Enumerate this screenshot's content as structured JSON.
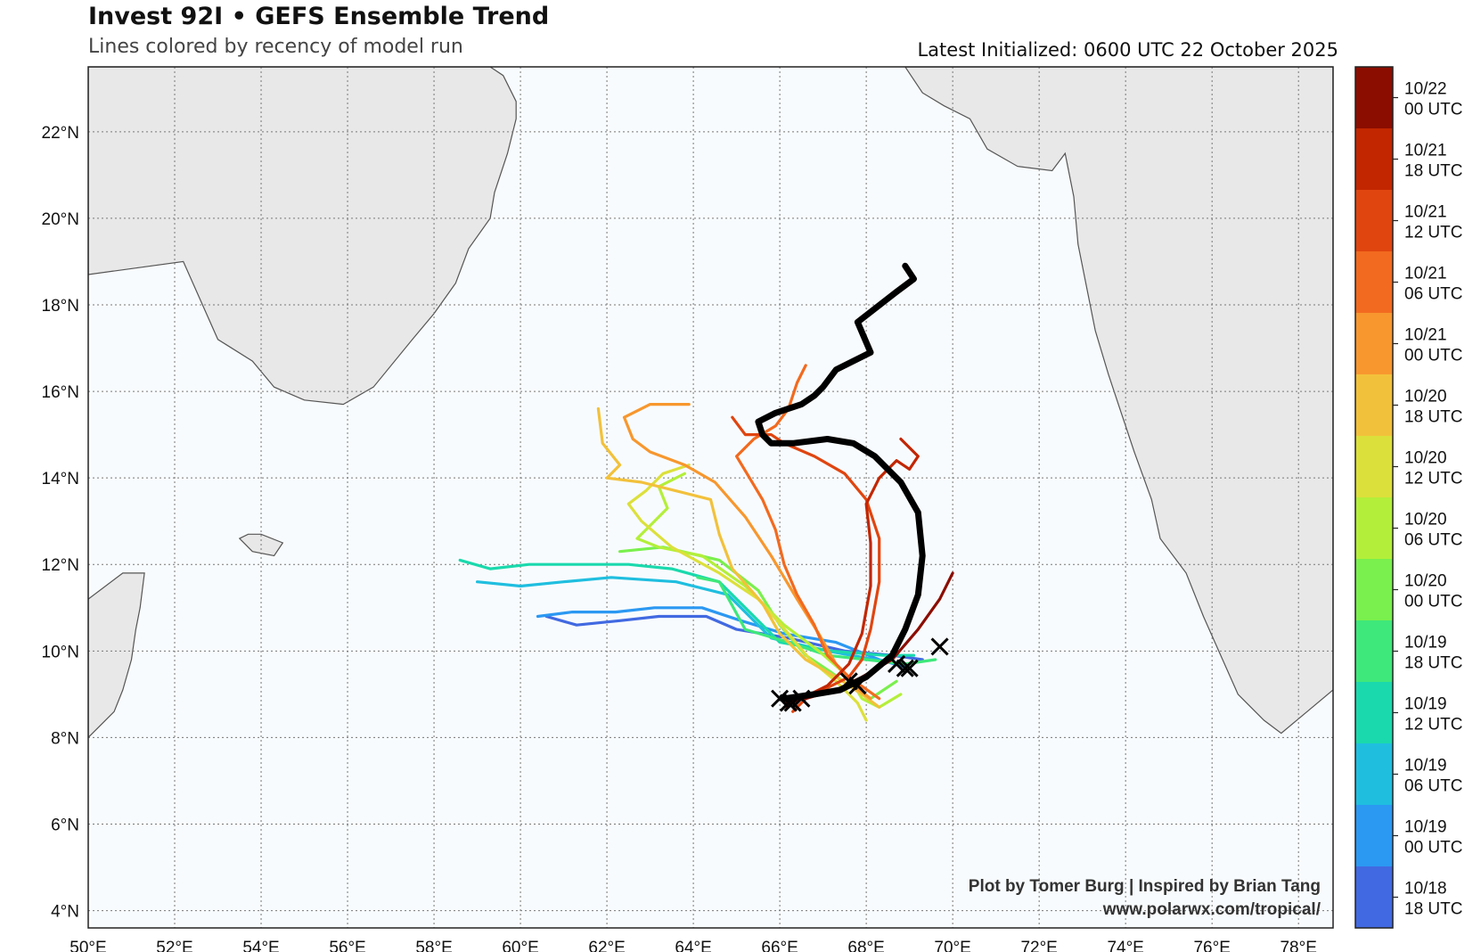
{
  "header": {
    "title": "Invest 92I • GEFS Ensemble Trend",
    "subtitle": "Lines colored by recency of model run",
    "latest": "Latest Initialized: 0600 UTC 22 October 2025"
  },
  "credits": {
    "line1": "Plot by Tomer Burg | Inspired by Brian Tang",
    "line2": "www.polarwx.com/tropical/"
  },
  "map": {
    "lon_range": [
      50,
      78.8
    ],
    "lat_range": [
      3.6,
      23.5
    ],
    "lon_ticks": [
      "50°E",
      "52°E",
      "54°E",
      "56°E",
      "58°E",
      "60°E",
      "62°E",
      "64°E",
      "66°E",
      "68°E",
      "70°E",
      "72°E",
      "74°E",
      "76°E",
      "78°E"
    ],
    "lat_ticks": [
      "4°N",
      "6°N",
      "8°N",
      "10°N",
      "12°N",
      "14°N",
      "16°N",
      "18°N",
      "20°N",
      "22°N"
    ],
    "colors": {
      "ocean": "#f8fbfd",
      "land": "#e8e8e8",
      "coast": "#555555",
      "grid": "#777777",
      "latest_track": "#000000"
    }
  },
  "colorbar": {
    "labels": [
      [
        "10/22",
        "00 UTC"
      ],
      [
        "10/21",
        "18 UTC"
      ],
      [
        "10/21",
        "12 UTC"
      ],
      [
        "10/21",
        "06 UTC"
      ],
      [
        "10/21",
        "00 UTC"
      ],
      [
        "10/20",
        "18 UTC"
      ],
      [
        "10/20",
        "12 UTC"
      ],
      [
        "10/20",
        "06 UTC"
      ],
      [
        "10/20",
        "00 UTC"
      ],
      [
        "10/19",
        "18 UTC"
      ],
      [
        "10/19",
        "12 UTC"
      ],
      [
        "10/19",
        "06 UTC"
      ],
      [
        "10/19",
        "00 UTC"
      ],
      [
        "10/18",
        "18 UTC"
      ]
    ],
    "colors": [
      "#8b0d00",
      "#c22600",
      "#e04510",
      "#f26a1f",
      "#f7972e",
      "#f2c13b",
      "#dce03b",
      "#b3ef3a",
      "#79f04d",
      "#3ee87a",
      "#1ad9ad",
      "#1fbedf",
      "#2b98f2",
      "#4169e1"
    ]
  },
  "tracks": [
    {
      "run": "10/18 18 UTC",
      "color": "#4169e1",
      "points": [
        [
          69.3,
          9.8
        ],
        [
          68.6,
          9.9
        ],
        [
          67.5,
          10.0
        ],
        [
          66.2,
          10.3
        ],
        [
          65.0,
          10.5
        ],
        [
          64.3,
          10.8
        ],
        [
          63.2,
          10.8
        ],
        [
          62.3,
          10.7
        ],
        [
          61.3,
          10.6
        ],
        [
          60.6,
          10.8
        ]
      ]
    },
    {
      "run": "10/19 00 UTC",
      "color": "#2b98f2",
      "points": [
        [
          69.0,
          9.6
        ],
        [
          68.3,
          9.8
        ],
        [
          67.3,
          10.2
        ],
        [
          66.1,
          10.4
        ],
        [
          65.1,
          10.7
        ],
        [
          64.2,
          11.0
        ],
        [
          63.1,
          11.0
        ],
        [
          62.2,
          10.9
        ],
        [
          61.2,
          10.9
        ],
        [
          60.4,
          10.8
        ]
      ]
    },
    {
      "run": "10/19 06 UTC",
      "color": "#1fbedf",
      "points": [
        [
          68.9,
          9.7
        ],
        [
          68.2,
          9.8
        ],
        [
          67.1,
          10.0
        ],
        [
          65.8,
          10.3
        ],
        [
          64.8,
          11.3
        ],
        [
          63.6,
          11.6
        ],
        [
          62.1,
          11.7
        ],
        [
          61.0,
          11.6
        ],
        [
          60.0,
          11.5
        ],
        [
          59.0,
          11.6
        ]
      ]
    },
    {
      "run": "10/19 12 UTC",
      "color": "#1ad9ad",
      "points": [
        [
          69.1,
          9.9
        ],
        [
          68.4,
          9.9
        ],
        [
          67.2,
          10.0
        ],
        [
          66.0,
          10.2
        ],
        [
          65.3,
          10.9
        ],
        [
          64.6,
          11.6
        ],
        [
          63.5,
          11.9
        ],
        [
          62.5,
          12.0
        ],
        [
          61.3,
          12.0
        ],
        [
          60.2,
          12.0
        ],
        [
          59.3,
          11.9
        ],
        [
          58.6,
          12.1
        ]
      ]
    },
    {
      "run": "10/19 18 UTC",
      "color": "#3ee87a",
      "points": [
        [
          69.6,
          9.8
        ],
        [
          68.9,
          9.7
        ],
        [
          68.0,
          9.8
        ],
        [
          67.1,
          9.9
        ],
        [
          66.2,
          10.2
        ],
        [
          65.2,
          10.5
        ],
        [
          64.6,
          11.6
        ],
        [
          64.1,
          11.7
        ]
      ]
    },
    {
      "run": "10/20 00 UTC",
      "color": "#79f04d",
      "points": [
        [
          68.7,
          9.3
        ],
        [
          68.1,
          8.9
        ],
        [
          67.6,
          9.2
        ],
        [
          67.2,
          9.5
        ],
        [
          66.6,
          9.9
        ],
        [
          66.0,
          10.6
        ],
        [
          65.5,
          11.4
        ],
        [
          64.6,
          12.1
        ],
        [
          63.3,
          12.4
        ],
        [
          62.3,
          12.3
        ]
      ]
    },
    {
      "run": "10/20 06 UTC",
      "color": "#b3ef3a",
      "points": [
        [
          68.8,
          9.0
        ],
        [
          68.3,
          8.7
        ],
        [
          67.9,
          8.9
        ],
        [
          67.6,
          9.4
        ],
        [
          66.9,
          10.0
        ],
        [
          66.1,
          10.6
        ],
        [
          65.2,
          11.5
        ],
        [
          64.2,
          12.2
        ],
        [
          63.2,
          12.4
        ],
        [
          62.7,
          12.6
        ],
        [
          63.0,
          12.9
        ],
        [
          63.4,
          13.3
        ],
        [
          63.2,
          13.8
        ],
        [
          63.8,
          14.1
        ]
      ]
    },
    {
      "run": "10/20 12 UTC",
      "color": "#dce03b",
      "points": [
        [
          68.0,
          8.4
        ],
        [
          67.8,
          8.8
        ],
        [
          67.3,
          9.3
        ],
        [
          66.7,
          9.8
        ],
        [
          66.2,
          10.4
        ],
        [
          65.5,
          11.2
        ],
        [
          64.6,
          11.8
        ],
        [
          63.5,
          12.4
        ],
        [
          62.8,
          13.0
        ],
        [
          62.5,
          13.4
        ],
        [
          62.9,
          13.7
        ],
        [
          63.3,
          14.1
        ],
        [
          63.9,
          14.3
        ]
      ]
    },
    {
      "run": "10/20 18 UTC",
      "color": "#f2c13b",
      "points": [
        [
          68.3,
          8.7
        ],
        [
          67.9,
          9.0
        ],
        [
          67.3,
          9.4
        ],
        [
          66.6,
          9.8
        ],
        [
          66.0,
          10.4
        ],
        [
          65.6,
          11.1
        ],
        [
          64.9,
          11.9
        ],
        [
          64.6,
          12.7
        ],
        [
          64.4,
          13.5
        ],
        [
          63.6,
          13.7
        ],
        [
          62.8,
          13.9
        ],
        [
          62.0,
          14.0
        ],
        [
          62.3,
          14.3
        ],
        [
          61.9,
          14.8
        ],
        [
          61.8,
          15.6
        ]
      ]
    },
    {
      "run": "10/21 00 UTC",
      "color": "#f7972e",
      "points": [
        [
          68.1,
          8.9
        ],
        [
          67.7,
          9.2
        ],
        [
          67.3,
          9.7
        ],
        [
          66.9,
          10.4
        ],
        [
          66.4,
          11.2
        ],
        [
          65.8,
          12.2
        ],
        [
          65.2,
          13.1
        ],
        [
          64.5,
          13.9
        ],
        [
          63.8,
          14.3
        ],
        [
          63.0,
          14.6
        ],
        [
          62.6,
          14.9
        ],
        [
          62.4,
          15.4
        ],
        [
          63.0,
          15.7
        ],
        [
          63.9,
          15.7
        ]
      ]
    },
    {
      "run": "10/21 06 UTC",
      "color": "#f26a1f",
      "points": [
        [
          68.3,
          8.9
        ],
        [
          67.6,
          9.4
        ],
        [
          67.1,
          9.9
        ],
        [
          66.8,
          10.6
        ],
        [
          66.4,
          11.3
        ],
        [
          66.1,
          12.0
        ],
        [
          65.9,
          12.8
        ],
        [
          65.6,
          13.5
        ],
        [
          65.3,
          14.0
        ],
        [
          65.0,
          14.5
        ],
        [
          65.4,
          14.9
        ],
        [
          65.9,
          15.2
        ],
        [
          66.2,
          15.6
        ],
        [
          66.4,
          16.2
        ],
        [
          66.6,
          16.6
        ]
      ]
    },
    {
      "run": "10/21 12 UTC",
      "color": "#e04510",
      "points": [
        [
          66.3,
          8.6
        ],
        [
          66.6,
          8.9
        ],
        [
          67.0,
          9.1
        ],
        [
          67.6,
          9.4
        ],
        [
          67.9,
          9.8
        ],
        [
          68.1,
          10.5
        ],
        [
          68.3,
          11.6
        ],
        [
          68.3,
          12.6
        ],
        [
          68.0,
          13.5
        ],
        [
          67.5,
          14.1
        ],
        [
          66.8,
          14.5
        ],
        [
          66.1,
          14.8
        ],
        [
          65.8,
          15.0
        ],
        [
          65.2,
          15.0
        ],
        [
          64.9,
          15.4
        ]
      ]
    },
    {
      "run": "10/21 18 UTC",
      "color": "#c22600",
      "points": [
        [
          66.1,
          8.7
        ],
        [
          66.5,
          8.9
        ],
        [
          67.1,
          9.2
        ],
        [
          67.6,
          9.7
        ],
        [
          67.9,
          10.4
        ],
        [
          68.1,
          11.5
        ],
        [
          68.1,
          12.5
        ],
        [
          68.0,
          13.4
        ],
        [
          68.3,
          14.0
        ],
        [
          68.7,
          14.4
        ],
        [
          69.0,
          14.2
        ],
        [
          69.2,
          14.5
        ],
        [
          68.8,
          14.9
        ]
      ]
    },
    {
      "run": "10/22 00 UTC",
      "color": "#8b0d00",
      "points": [
        [
          66.1,
          8.8
        ],
        [
          66.6,
          8.9
        ],
        [
          67.3,
          9.1
        ],
        [
          67.9,
          9.4
        ],
        [
          68.6,
          9.8
        ],
        [
          69.2,
          10.5
        ],
        [
          69.7,
          11.2
        ],
        [
          70.0,
          11.8
        ]
      ]
    },
    {
      "run": "0600 UTC 22 October 2025",
      "color": "#000000",
      "points": [
        [
          66.1,
          8.9
        ],
        [
          66.8,
          9.0
        ],
        [
          67.4,
          9.1
        ],
        [
          68.0,
          9.4
        ],
        [
          68.6,
          9.9
        ],
        [
          68.9,
          10.5
        ],
        [
          69.2,
          11.3
        ],
        [
          69.3,
          12.2
        ],
        [
          69.2,
          13.2
        ],
        [
          68.8,
          13.9
        ],
        [
          68.2,
          14.5
        ],
        [
          67.7,
          14.8
        ],
        [
          67.1,
          14.9
        ],
        [
          66.3,
          14.8
        ],
        [
          65.8,
          14.8
        ],
        [
          65.6,
          15.0
        ],
        [
          65.5,
          15.3
        ],
        [
          65.9,
          15.5
        ],
        [
          66.5,
          15.7
        ],
        [
          66.8,
          15.9
        ],
        [
          67.0,
          16.1
        ],
        [
          67.3,
          16.5
        ],
        [
          68.1,
          16.9
        ],
        [
          67.8,
          17.6
        ],
        [
          68.7,
          18.3
        ],
        [
          69.1,
          18.6
        ],
        [
          68.9,
          18.9
        ]
      ]
    }
  ],
  "start_markers": [
    [
      66.0,
      8.9
    ],
    [
      66.2,
      8.8
    ],
    [
      66.3,
      8.8
    ],
    [
      66.5,
      8.9
    ],
    [
      67.6,
      9.3
    ],
    [
      67.8,
      9.2
    ],
    [
      68.7,
      9.7
    ],
    [
      68.9,
      9.6
    ],
    [
      69.0,
      9.6
    ],
    [
      69.7,
      10.1
    ]
  ],
  "land": {
    "arabia": [
      [
        50,
        23.5
      ],
      [
        50,
        18.7
      ],
      [
        52.2,
        19.0
      ],
      [
        53.0,
        17.2
      ],
      [
        53.8,
        16.7
      ],
      [
        54.3,
        16.1
      ],
      [
        55.0,
        15.8
      ],
      [
        55.9,
        15.7
      ],
      [
        56.6,
        16.1
      ],
      [
        57.5,
        17.2
      ],
      [
        58.0,
        17.8
      ],
      [
        58.5,
        18.5
      ],
      [
        58.8,
        19.3
      ],
      [
        59.3,
        20.0
      ],
      [
        59.4,
        20.6
      ],
      [
        59.7,
        21.5
      ],
      [
        59.9,
        22.3
      ],
      [
        59.9,
        22.7
      ],
      [
        59.6,
        23.3
      ],
      [
        59.3,
        23.5
      ]
    ],
    "somalia": [
      [
        50,
        11.2
      ],
      [
        50.8,
        11.8
      ],
      [
        51.3,
        11.8
      ],
      [
        51.2,
        11.0
      ],
      [
        51.1,
        10.5
      ],
      [
        51.0,
        9.8
      ],
      [
        50.8,
        9.1
      ],
      [
        50.6,
        8.6
      ],
      [
        50.3,
        8.3
      ],
      [
        50,
        8.0
      ]
    ],
    "socotra": [
      [
        53.5,
        12.6
      ],
      [
        53.8,
        12.3
      ],
      [
        54.3,
        12.2
      ],
      [
        54.5,
        12.5
      ],
      [
        54.0,
        12.7
      ],
      [
        53.7,
        12.7
      ]
    ],
    "india": [
      [
        68.9,
        23.5
      ],
      [
        69.3,
        22.9
      ],
      [
        69.8,
        22.6
      ],
      [
        70.4,
        22.3
      ],
      [
        70.8,
        21.6
      ],
      [
        71.5,
        21.2
      ],
      [
        72.3,
        21.1
      ],
      [
        72.6,
        21.5
      ],
      [
        72.8,
        20.5
      ],
      [
        72.9,
        19.4
      ],
      [
        73.3,
        17.4
      ],
      [
        73.6,
        16.4
      ],
      [
        73.9,
        15.5
      ],
      [
        74.2,
        14.6
      ],
      [
        74.6,
        13.5
      ],
      [
        74.8,
        12.6
      ],
      [
        75.4,
        11.8
      ],
      [
        75.8,
        10.8
      ],
      [
        76.2,
        9.9
      ],
      [
        76.6,
        9.0
      ],
      [
        77.2,
        8.4
      ],
      [
        77.6,
        8.1
      ],
      [
        78.2,
        8.6
      ],
      [
        78.8,
        9.1
      ],
      [
        78.8,
        23.5
      ]
    ]
  }
}
